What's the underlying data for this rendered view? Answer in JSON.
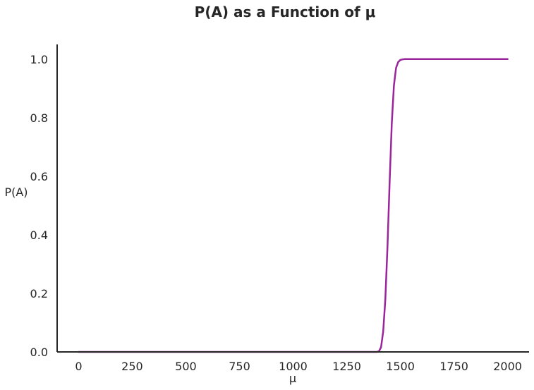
{
  "chart_data": {
    "type": "line",
    "title": "P(A) as a Function of μ",
    "xlabel": "μ",
    "ylabel": "P(A)",
    "xlim": [
      -100,
      2100
    ],
    "ylim": [
      0,
      1.05
    ],
    "xticks": [
      0,
      250,
      500,
      750,
      1000,
      1250,
      1500,
      1750,
      2000
    ],
    "xtick_labels": [
      "0",
      "250",
      "500",
      "750",
      "1000",
      "1250",
      "1500",
      "1750",
      "2000"
    ],
    "yticks": [
      0.0,
      0.2,
      0.4,
      0.6,
      0.8,
      1.0
    ],
    "ytick_labels": [
      "0.0",
      "0.2",
      "0.4",
      "0.6",
      "0.8",
      "1.0"
    ],
    "grid": false,
    "series": [
      {
        "name": "P(A)",
        "color": "#9b259b",
        "x": [
          0,
          1300,
          1390,
          1400,
          1410,
          1420,
          1430,
          1440,
          1450,
          1460,
          1470,
          1480,
          1490,
          1500,
          1510,
          1520,
          1540,
          1600,
          2000
        ],
        "y": [
          0,
          0,
          0,
          0.002,
          0.016,
          0.07,
          0.18,
          0.36,
          0.58,
          0.78,
          0.91,
          0.97,
          0.99,
          0.997,
          0.999,
          1.0,
          1.0,
          1.0,
          1.0
        ]
      }
    ]
  }
}
